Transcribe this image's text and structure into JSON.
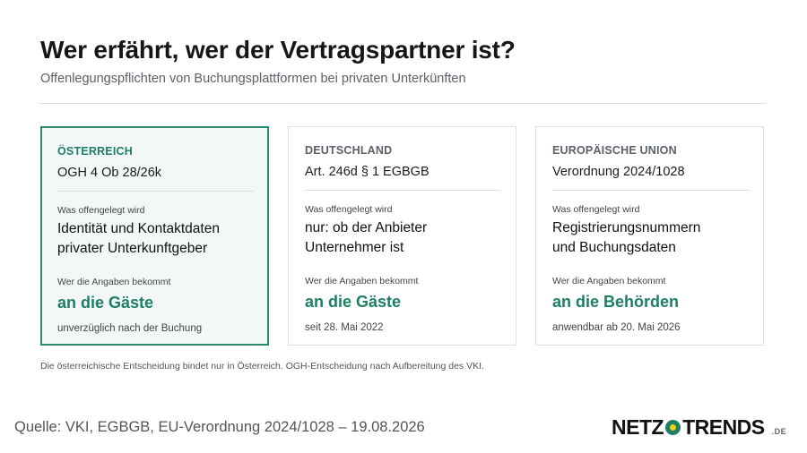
{
  "header": {
    "title": "Wer erfährt, wer der Vertragspartner ist?",
    "subtitle": "Offenlegungspflichten von Buchungsplattformen bei privaten Unterkünften"
  },
  "cards": [
    {
      "region": "ÖSTERREICH",
      "ruling": "OGH 4 Ob 28/26k",
      "disclosed_label": "Was offengelegt wird",
      "disclosed_lines": [
        "Identität und Kontaktdaten",
        "privater Unterkunftgeber"
      ],
      "recipient_label": "Wer die Angaben bekommt",
      "recipient": "an die Gäste",
      "timing": "unverzüglich nach der Buchung"
    },
    {
      "region": "DEUTSCHLAND",
      "ruling": "Art. 246d § 1 EGBGB",
      "disclosed_label": "Was offengelegt wird",
      "disclosed_lines": [
        "nur: ob der Anbieter",
        "Unternehmer ist"
      ],
      "recipient_label": "Wer die Angaben bekommt",
      "recipient": "an die Gäste",
      "timing": "seit 28. Mai 2022"
    },
    {
      "region": "EUROPÄISCHE UNION",
      "ruling": "Verordnung 2024/1028",
      "disclosed_label": "Was offengelegt wird",
      "disclosed_lines": [
        "Registrierungsnummern",
        "und Buchungsdaten"
      ],
      "recipient_label": "Wer die Angaben bekommt",
      "recipient": "an die Behörden",
      "timing": "anwendbar ab 20. Mai 2026"
    }
  ],
  "footnote": "Die österreichische Entscheidung bindet nur in Österreich. OGH-Entscheidung nach Aufbereitung des VKI.",
  "source": "Quelle: VKI, EGBGB, EU-Verordnung 2024/1028 – 19.08.2026",
  "logo": {
    "left": "NETZ",
    "right": "TRENDS",
    "suffix": ".DE"
  }
}
